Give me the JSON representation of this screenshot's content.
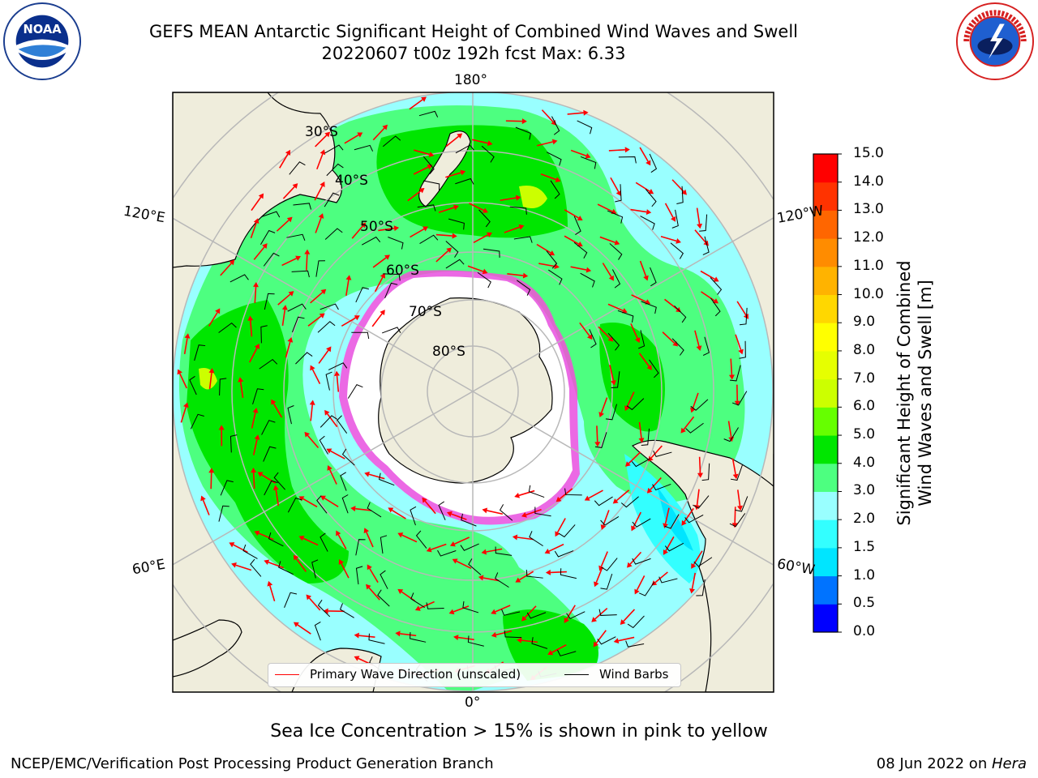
{
  "title": {
    "line1": "GEFS MEAN Antarctic Significant Height of Combined Wind Waves and Swell",
    "line2": "20220607 t00z 192h fcst   Max: 6.33"
  },
  "map": {
    "longitude_labels": [
      "180°",
      "120°E",
      "120°W",
      "60°E",
      "60°W",
      "0°"
    ],
    "latitude_labels": [
      "30°S",
      "40°S",
      "50°S",
      "60°S",
      "70°S",
      "80°S"
    ],
    "legend": {
      "wave_label": "Primary Wave Direction (unscaled)",
      "wave_color": "#ff0000",
      "wind_label": "Wind Barbs",
      "wind_color": "#000000"
    }
  },
  "colorbar": {
    "title_line1": "Significant Height of Combined",
    "title_line2": "Wind Waves and Swell [m]",
    "ticks": [
      "0.0",
      "0.5",
      "1.0",
      "1.5",
      "2.0",
      "3.0",
      "4.0",
      "5.0",
      "6.0",
      "7.0",
      "8.0",
      "9.0",
      "10.0",
      "11.0",
      "12.0",
      "13.0",
      "14.0",
      "15.0"
    ],
    "colors": [
      "#0000ff",
      "#0073ff",
      "#00e5ff",
      "#33ffff",
      "#99ffff",
      "#4dff80",
      "#00e600",
      "#66ff00",
      "#ccff00",
      "#e6ff00",
      "#ffff00",
      "#ffd700",
      "#ffb300",
      "#ff8c00",
      "#ff6600",
      "#ff3300",
      "#ff0000"
    ]
  },
  "note": "Sea Ice Concentration > 15% is shown in pink to yellow",
  "footer": {
    "left": "NCEP/EMC/Verification Post Processing Product Generation Branch",
    "right_date": "08 Jun 2022 on ",
    "right_machine": "Hera"
  }
}
